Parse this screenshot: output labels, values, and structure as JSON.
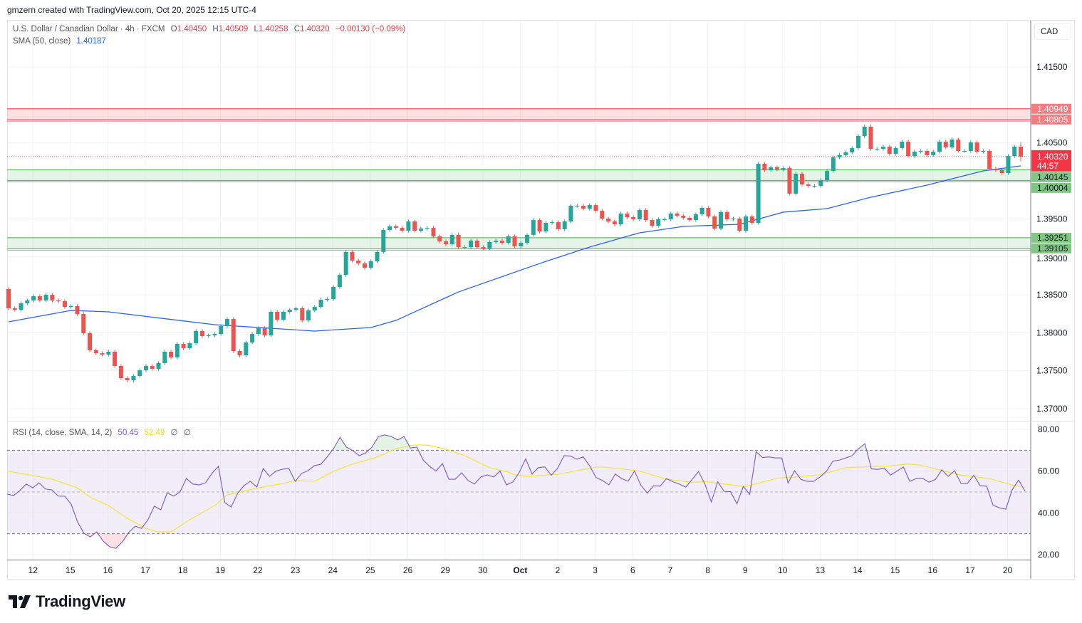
{
  "credit": "gmzern created with TradingView.com, Oct 20, 2025 12:15 UTC-4",
  "legend": {
    "symbol": "U.S. Dollar / Canadian Dollar · 4h · FXCM",
    "o_label": "O",
    "o": "1.40450",
    "h_label": "H",
    "h": "1.40509",
    "l_label": "L",
    "l": "1.40258",
    "c_label": "C",
    "c": "1.40320",
    "change": "−0.00130 (−0.09%)",
    "sma_label": "SMA (50, close)",
    "sma_value": "1.40187",
    "rsi_label": "RSI (14, close, SMA, 14, 2)",
    "rsi_value": "50.45",
    "rsi_ma_value": "52.49",
    "rsi_extra1": "∅",
    "rsi_extra2": "∅"
  },
  "currency_button": "CAD",
  "branding": {
    "logo_text": "TradingView",
    "logo_icon": "tradingview-logo-icon"
  },
  "colors": {
    "up": "#26a69a",
    "down": "#ef5350",
    "sma": "#2962ff",
    "rsi": "#7e57c2",
    "rsi_ma": "#f7e23b",
    "resistance_zone": "#f7525f",
    "support_zone": "#66bb6a",
    "grid": "#f0f3fa"
  },
  "chart_data": [
    {
      "type": "candlestick",
      "title": "U.S. Dollar / Canadian Dollar · 4h · FXCM",
      "timeframe": "4h",
      "first_open": 1.38575,
      "closes": [
        1.38322,
        1.38303,
        1.38387,
        1.38425,
        1.38481,
        1.38425,
        1.385,
        1.38425,
        1.38416,
        1.38341,
        1.3835,
        1.38247,
        1.37994,
        1.37769,
        1.37731,
        1.37712,
        1.3775,
        1.37562,
        1.37403,
        1.37375,
        1.37431,
        1.37506,
        1.37562,
        1.37525,
        1.376,
        1.3775,
        1.37675,
        1.37853,
        1.37797,
        1.37862,
        1.38022,
        1.37956,
        1.37966,
        1.37984,
        1.38087,
        1.38181,
        1.37759,
        1.37703,
        1.37872,
        1.37984,
        1.38059,
        1.37966,
        1.38275,
        1.38172,
        1.38275,
        1.38303,
        1.38322,
        1.38162,
        1.38294,
        1.38341,
        1.38434,
        1.38444,
        1.38603,
        1.38762,
        1.39063,
        1.3895,
        1.38913,
        1.38856,
        1.38941,
        1.39063,
        1.39353,
        1.394,
        1.39381,
        1.39344,
        1.39466,
        1.39344,
        1.39372,
        1.39381,
        1.39269,
        1.39203,
        1.39166,
        1.39288,
        1.39128,
        1.39128,
        1.39213,
        1.39128,
        1.39109,
        1.39194,
        1.39213,
        1.39184,
        1.39269,
        1.39138,
        1.39184,
        1.39288,
        1.39484,
        1.39334,
        1.39447,
        1.39456,
        1.39363,
        1.39466,
        1.39672,
        1.39672,
        1.39634,
        1.39681,
        1.39606,
        1.39503,
        1.39466,
        1.39428,
        1.39569,
        1.39522,
        1.39494,
        1.39616,
        1.39484,
        1.39409,
        1.39494,
        1.39494,
        1.39569,
        1.39541,
        1.39513,
        1.39484,
        1.39559,
        1.39644,
        1.39531,
        1.39372,
        1.39588,
        1.39494,
        1.39503,
        1.39344,
        1.39531,
        1.39447,
        1.40225,
        1.40141,
        1.40178,
        1.4015,
        1.40169,
        1.39831,
        1.40094,
        1.39953,
        1.39934,
        1.39934,
        1.40009,
        1.40131,
        1.40309,
        1.40338,
        1.40375,
        1.40431,
        1.40591,
        1.40713,
        1.40422,
        1.40422,
        1.4045,
        1.40356,
        1.40431,
        1.40516,
        1.40328,
        1.40384,
        1.40394,
        1.40338,
        1.40384,
        1.40516,
        1.40441,
        1.40544,
        1.40394,
        1.40394,
        1.40506,
        1.40384,
        1.40394,
        1.40159,
        1.40141,
        1.40103,
        1.40328,
        1.4045,
        1.4032
      ],
      "last_bar": {
        "open": 1.4045,
        "high": 1.40509,
        "low": 1.40258,
        "close": 1.4032
      },
      "sma50": [
        [
          0,
          1.38144
        ],
        [
          10,
          1.38294
        ],
        [
          16,
          1.38275
        ],
        [
          33,
          1.38106
        ],
        [
          49,
          1.38022
        ],
        [
          58,
          1.38069
        ],
        [
          62,
          1.38162
        ],
        [
          72,
          1.38537
        ],
        [
          85,
          1.38912
        ],
        [
          93,
          1.39128
        ],
        [
          101,
          1.39316
        ],
        [
          108,
          1.394
        ],
        [
          117,
          1.39428
        ],
        [
          124,
          1.39588
        ],
        [
          131,
          1.39634
        ],
        [
          138,
          1.39784
        ],
        [
          147,
          1.39944
        ],
        [
          156,
          1.40131
        ],
        [
          162,
          1.40197
        ]
      ],
      "ylim": [
        1.3675,
        1.4215
      ],
      "price_ticks": [
        "1.41500",
        "1.40500",
        "1.39500",
        "1.39000",
        "1.38500",
        "1.38000",
        "1.37500",
        "1.37000"
      ],
      "current_price": {
        "value": "1.40320",
        "countdown": "44:57"
      },
      "zones": [
        {
          "kind": "resistance",
          "top": "1.40949",
          "bottom": "1.40805"
        },
        {
          "kind": "support",
          "top": "1.40145",
          "bottom": "1.40004"
        },
        {
          "kind": "support",
          "top": "1.39251",
          "bottom": "1.39105"
        }
      ],
      "x_labels": [
        "12",
        "15",
        "16",
        "17",
        "18",
        "19",
        "22",
        "23",
        "24",
        "25",
        "26",
        "29",
        "30",
        "Oct",
        "2",
        "3",
        "6",
        "7",
        "8",
        "9",
        "10",
        "13",
        "14",
        "15",
        "16",
        "17",
        "20"
      ],
      "grid": true
    },
    {
      "type": "line",
      "title": "RSI (14, close, SMA, 14, 2)",
      "ylim": [
        16,
        84
      ],
      "ticks": [
        "80.00",
        "60.00",
        "40.00",
        "20.00"
      ],
      "bands": {
        "upper": 70,
        "middle": 50,
        "lower": 30
      },
      "rsi": [
        49,
        48.3,
        50.7,
        53.8,
        52,
        54.4,
        51.4,
        51,
        48,
        48,
        44.2,
        35.7,
        30.2,
        28.5,
        30.9,
        26.5,
        23.8,
        23,
        26.1,
        30.6,
        33.6,
        32.6,
        36.7,
        43.2,
        41.5,
        49.6,
        48,
        50,
        56.5,
        53.8,
        53.4,
        54.4,
        58.9,
        62.3,
        44.9,
        42.8,
        49.3,
        53.1,
        55.1,
        52.4,
        61.2,
        57.5,
        60,
        60.9,
        61.3,
        55.1,
        58.9,
        60.2,
        62.6,
        63.3,
        66.8,
        70.8,
        76.2,
        71.5,
        69.8,
        67.4,
        68.7,
        71.5,
        76.6,
        77.3,
        76.6,
        74.9,
        76.6,
        71.1,
        71.5,
        65.3,
        62.3,
        60,
        63.6,
        56.1,
        56.1,
        59.2,
        55.5,
        53.8,
        57.2,
        58.2,
        57.2,
        60,
        53.4,
        54.8,
        59.4,
        65.9,
        58.6,
        61.7,
        62,
        58,
        61.4,
        67.4,
        67.2,
        65.7,
        66.8,
        62.5,
        56.9,
        55.5,
        53.4,
        58.6,
        56.4,
        55.2,
        60,
        53.2,
        49.5,
        53,
        52.8,
        56.4,
        54.9,
        53.8,
        52.3,
        56,
        59.8,
        53.8,
        45.2,
        54.9,
        50.3,
        50.1,
        44.4,
        52.6,
        48.9,
        69.3,
        66.5,
        66.8,
        66.3,
        66.3,
        54.3,
        60.2,
        56,
        55.1,
        55.1,
        57.2,
        60,
        64.8,
        65.3,
        66.3,
        67.4,
        70.8,
        73.1,
        61.1,
        60.8,
        61.5,
        58.1,
        60,
        62,
        55.1,
        56.4,
        56.6,
        54.7,
        56,
        60.6,
        57.5,
        60.2,
        54.1,
        54.1,
        58,
        53,
        52.8,
        43.7,
        42.4,
        41.8,
        51.1,
        55.7,
        50.45
      ],
      "rsi_ma": [
        [
          0,
          59.9
        ],
        [
          4,
          57.8
        ],
        [
          7,
          56.1
        ],
        [
          11,
          52
        ],
        [
          13,
          47.6
        ],
        [
          16,
          43.5
        ],
        [
          19,
          37.4
        ],
        [
          22,
          32.6
        ],
        [
          24,
          30.9
        ],
        [
          26,
          30.9
        ],
        [
          29,
          36.7
        ],
        [
          33,
          43.5
        ],
        [
          35,
          48.6
        ],
        [
          40,
          52
        ],
        [
          44,
          54.1
        ],
        [
          46,
          55.5
        ],
        [
          49,
          55.1
        ],
        [
          52,
          59.9
        ],
        [
          55,
          63.3
        ],
        [
          59,
          66.7
        ],
        [
          62,
          70.8
        ],
        [
          65,
          72.5
        ],
        [
          67,
          72.5
        ],
        [
          70,
          70.5
        ],
        [
          73,
          67.4
        ],
        [
          77,
          61.6
        ],
        [
          80,
          59.5
        ],
        [
          81,
          58.3
        ],
        [
          83,
          57.5
        ],
        [
          88,
          58.5
        ],
        [
          94,
          61.9
        ],
        [
          95,
          62
        ],
        [
          98,
          61.1
        ],
        [
          101,
          60
        ],
        [
          105,
          56.4
        ],
        [
          109,
          54.7
        ],
        [
          112,
          54.9
        ],
        [
          114,
          54
        ],
        [
          118,
          52.6
        ],
        [
          123,
          56.6
        ],
        [
          126,
          57.2
        ],
        [
          130,
          58.3
        ],
        [
          134,
          61.7
        ],
        [
          137,
          62
        ],
        [
          141,
          62.5
        ],
        [
          144,
          63.4
        ],
        [
          146,
          62.8
        ],
        [
          149,
          60.6
        ],
        [
          152,
          58.3
        ],
        [
          157,
          56.4
        ],
        [
          161,
          53
        ],
        [
          162,
          52.49
        ]
      ]
    }
  ]
}
